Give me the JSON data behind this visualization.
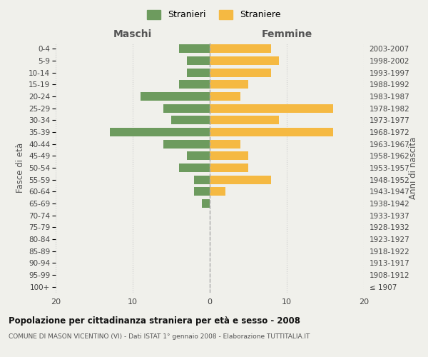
{
  "age_groups": [
    "100+",
    "95-99",
    "90-94",
    "85-89",
    "80-84",
    "75-79",
    "70-74",
    "65-69",
    "60-64",
    "55-59",
    "50-54",
    "45-49",
    "40-44",
    "35-39",
    "30-34",
    "25-29",
    "20-24",
    "15-19",
    "10-14",
    "5-9",
    "0-4"
  ],
  "birth_years": [
    "≤ 1907",
    "1908-1912",
    "1913-1917",
    "1918-1922",
    "1923-1927",
    "1928-1932",
    "1933-1937",
    "1938-1942",
    "1943-1947",
    "1948-1952",
    "1953-1957",
    "1958-1962",
    "1963-1967",
    "1968-1972",
    "1973-1977",
    "1978-1982",
    "1983-1987",
    "1988-1992",
    "1993-1997",
    "1998-2002",
    "2003-2007"
  ],
  "males": [
    0,
    0,
    0,
    0,
    0,
    0,
    0,
    1,
    2,
    2,
    4,
    3,
    6,
    13,
    5,
    6,
    9,
    4,
    3,
    3,
    4
  ],
  "females": [
    0,
    0,
    0,
    0,
    0,
    0,
    0,
    0,
    2,
    8,
    5,
    5,
    4,
    16,
    9,
    16,
    4,
    5,
    8,
    9,
    8
  ],
  "male_color": "#6d9b5e",
  "female_color": "#f5b942",
  "bg_color": "#f0f0eb",
  "grid_color": "#cccccc",
  "title": "Popolazione per cittadinanza straniera per età e sesso - 2008",
  "subtitle": "COMUNE DI MASON VICENTINO (VI) - Dati ISTAT 1° gennaio 2008 - Elaborazione TUTTITALIA.IT",
  "xlabel_left": "Maschi",
  "xlabel_right": "Femmine",
  "ylabel": "Fasce di età",
  "ylabel_right": "Anni di nascita",
  "legend_male": "Stranieri",
  "legend_female": "Straniere",
  "xlim": 20
}
